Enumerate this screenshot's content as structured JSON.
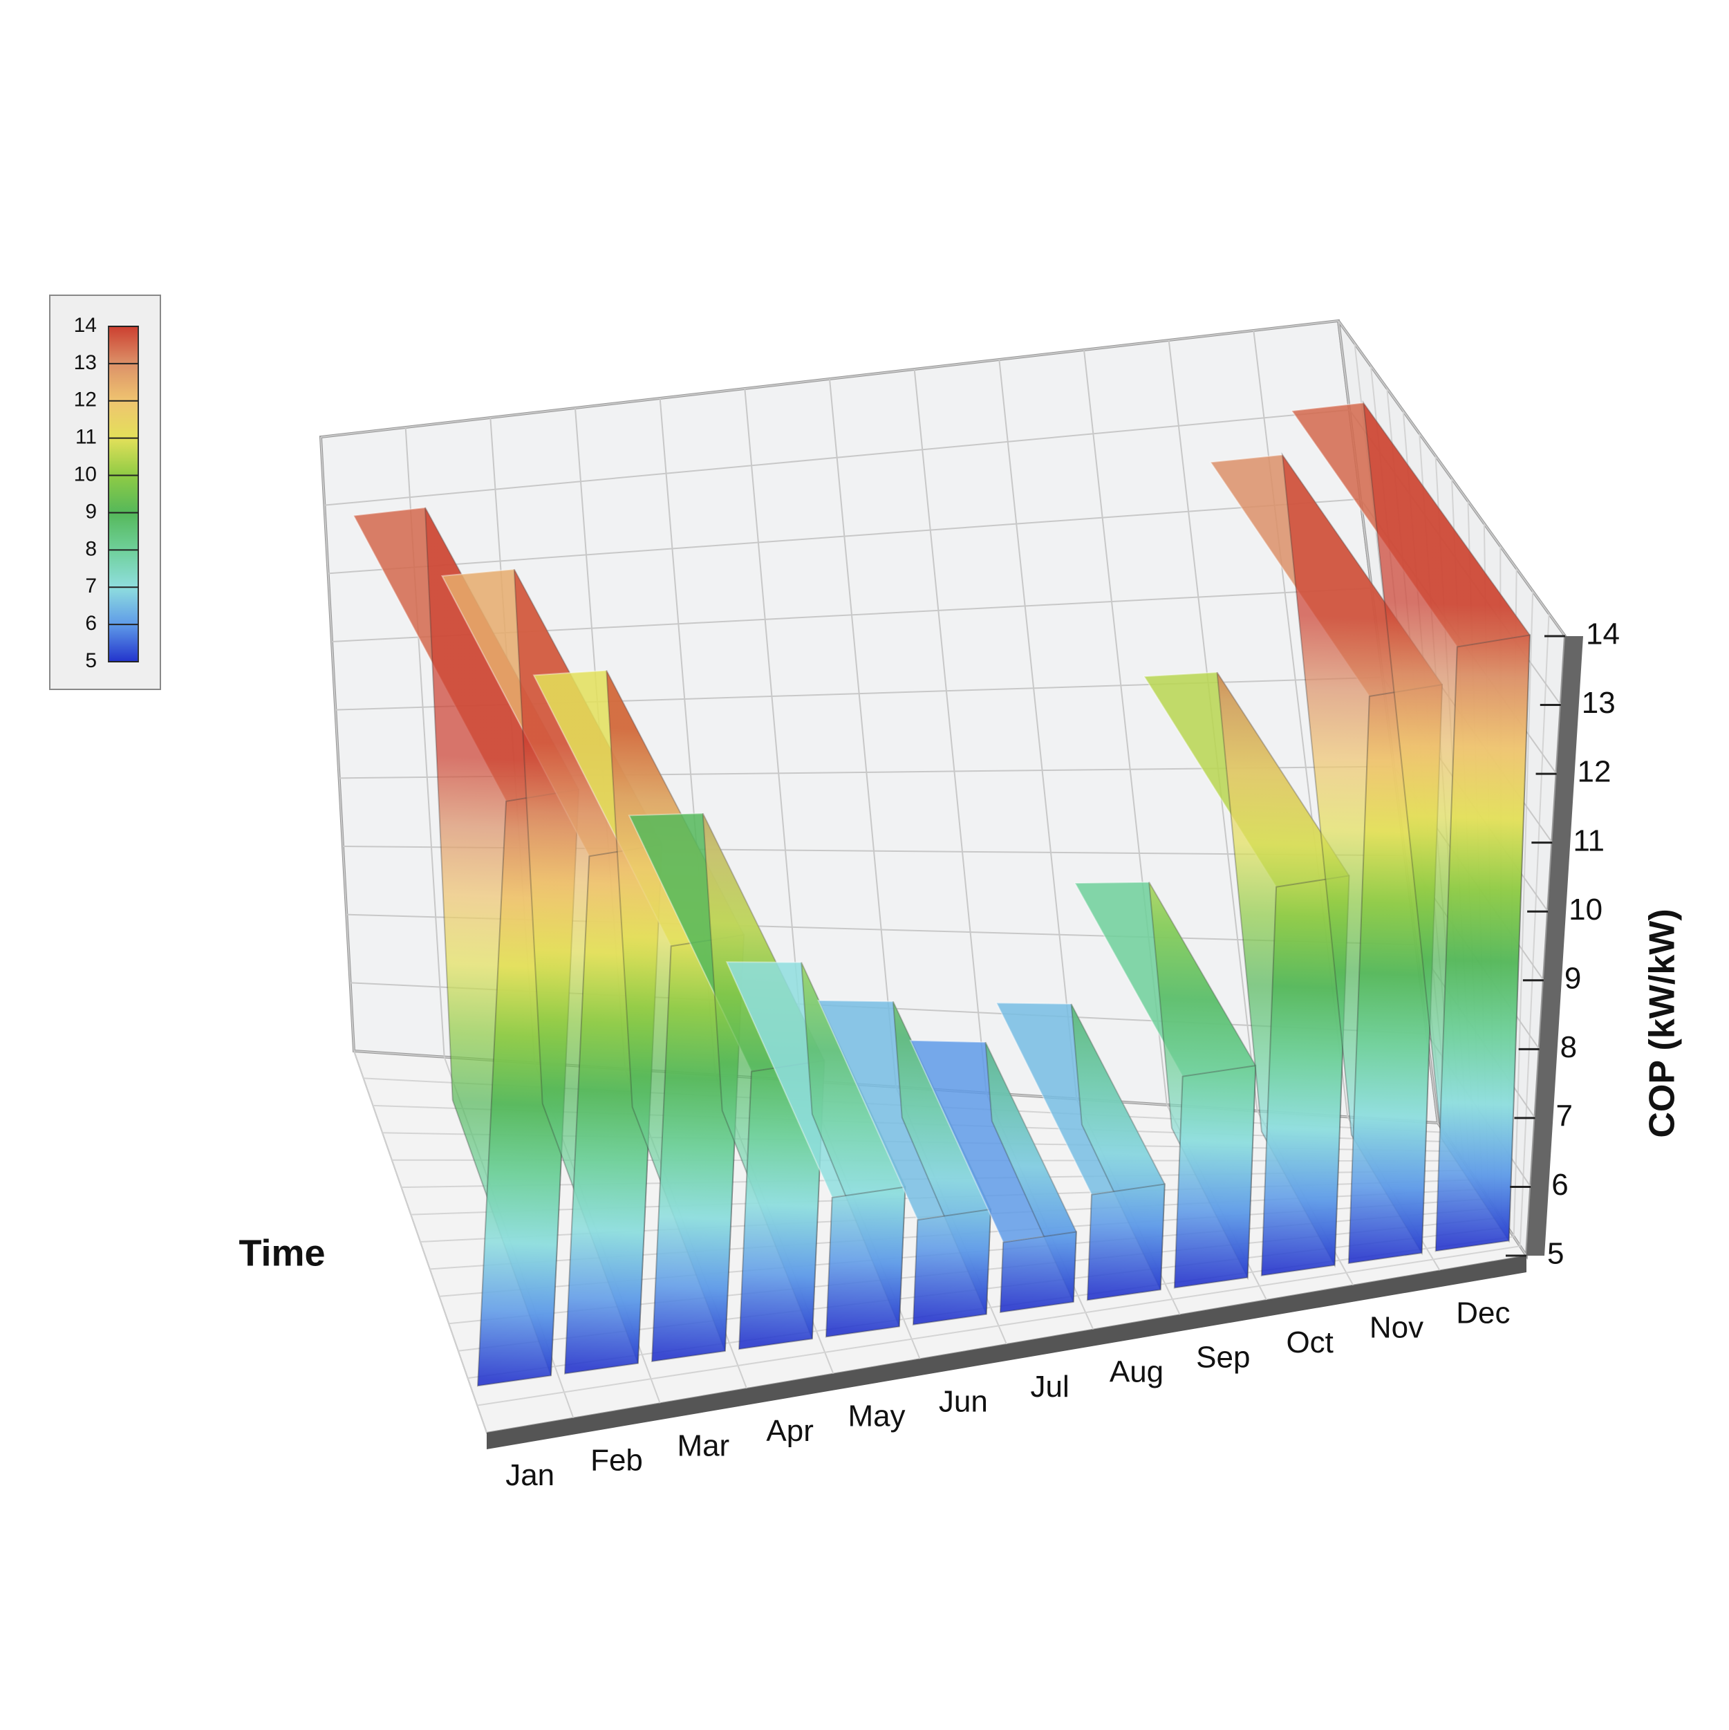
{
  "chart_data": {
    "type": "surface3d",
    "categories": [
      "Jan",
      "Feb",
      "Mar",
      "Apr",
      "May",
      "Jun",
      "Jul",
      "Aug",
      "Sep",
      "Oct",
      "Nov",
      "Dec"
    ],
    "values": [
      13.5,
      12.5,
      11,
      9,
      7,
      6.5,
      6,
      6.5,
      8,
      10.5,
      13,
      13.5
    ],
    "xlabel": "Time",
    "zlabel": "COP (kW/kW)",
    "zlim": [
      5,
      14
    ],
    "zticks": [
      5,
      6,
      7,
      8,
      9,
      10,
      11,
      12,
      13,
      14
    ],
    "colormap": [
      "#2233cc",
      "#5f9be8",
      "#8fdede",
      "#6fd09a",
      "#55b85a",
      "#8fcb45",
      "#e3e05a",
      "#efc470",
      "#dc9168",
      "#cc3f30"
    ],
    "grid": true
  }
}
